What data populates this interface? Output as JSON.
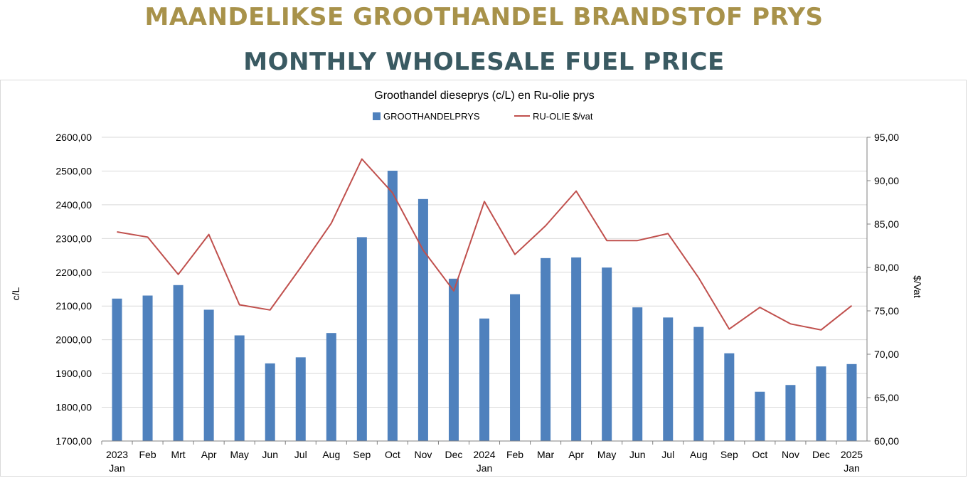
{
  "header": {
    "title_af": "MAANDELIKSE GROOTHANDEL BRANDSTOF PRYS",
    "title_en": "MONTHLY WHOLESALE FUEL PRICE"
  },
  "colors": {
    "bar": "#4F81BD",
    "line": "#C0504D",
    "gold": "#A8924A",
    "teal": "#3A5A62",
    "grid": "#d9d9d9"
  },
  "chart_data": {
    "type": "bar",
    "title": "Groothandel dieseprys (c/L) en Ru-olie prys",
    "legend_position": "top",
    "grid": true,
    "categories": [
      [
        "2023",
        "Jan"
      ],
      [
        "Feb"
      ],
      [
        "Mrt"
      ],
      [
        "Apr"
      ],
      [
        "May"
      ],
      [
        "Jun"
      ],
      [
        "Jul"
      ],
      [
        "Aug"
      ],
      [
        "Sep"
      ],
      [
        "Oct"
      ],
      [
        "Nov"
      ],
      [
        "Dec"
      ],
      [
        "2024",
        "Jan"
      ],
      [
        "Feb"
      ],
      [
        "Mar"
      ],
      [
        "Apr"
      ],
      [
        "May"
      ],
      [
        "Jun"
      ],
      [
        "Jul"
      ],
      [
        "Aug"
      ],
      [
        "Sep"
      ],
      [
        "Oct"
      ],
      [
        "Nov"
      ],
      [
        "Dec"
      ],
      [
        "2025",
        "Jan"
      ]
    ],
    "ylabel": "c/L",
    "y2label": "$/Vat",
    "ylim": [
      1700,
      2600
    ],
    "y2lim": [
      60,
      95
    ],
    "yticks": [
      "1700,00",
      "1800,00",
      "1900,00",
      "2000,00",
      "2100,00",
      "2200,00",
      "2300,00",
      "2400,00",
      "2500,00",
      "2600,00"
    ],
    "y2ticks": [
      "60,00",
      "65,00",
      "70,00",
      "75,00",
      "80,00",
      "85,00",
      "90,00",
      "95,00"
    ],
    "series": [
      {
        "name": "GROOTHANDELPRYS",
        "type": "bar",
        "axis": "left",
        "values": [
          2122,
          2131,
          2162,
          2089,
          2013,
          1930,
          1948,
          2020,
          2304,
          2501,
          2417,
          2181,
          2063,
          2135,
          2242,
          2244,
          2214,
          2096,
          2066,
          2038,
          1960,
          1846,
          1866,
          1921,
          1928
        ]
      },
      {
        "name": "RU-OLIE $/vat",
        "type": "line",
        "axis": "right",
        "values": [
          84.1,
          83.5,
          79.2,
          83.8,
          75.7,
          75.1,
          80.0,
          85.1,
          92.5,
          88.6,
          82.0,
          77.3,
          87.6,
          81.5,
          84.8,
          88.8,
          83.1,
          83.1,
          83.9,
          78.8,
          72.9,
          75.4,
          73.5,
          72.8,
          75.6
        ]
      }
    ]
  }
}
